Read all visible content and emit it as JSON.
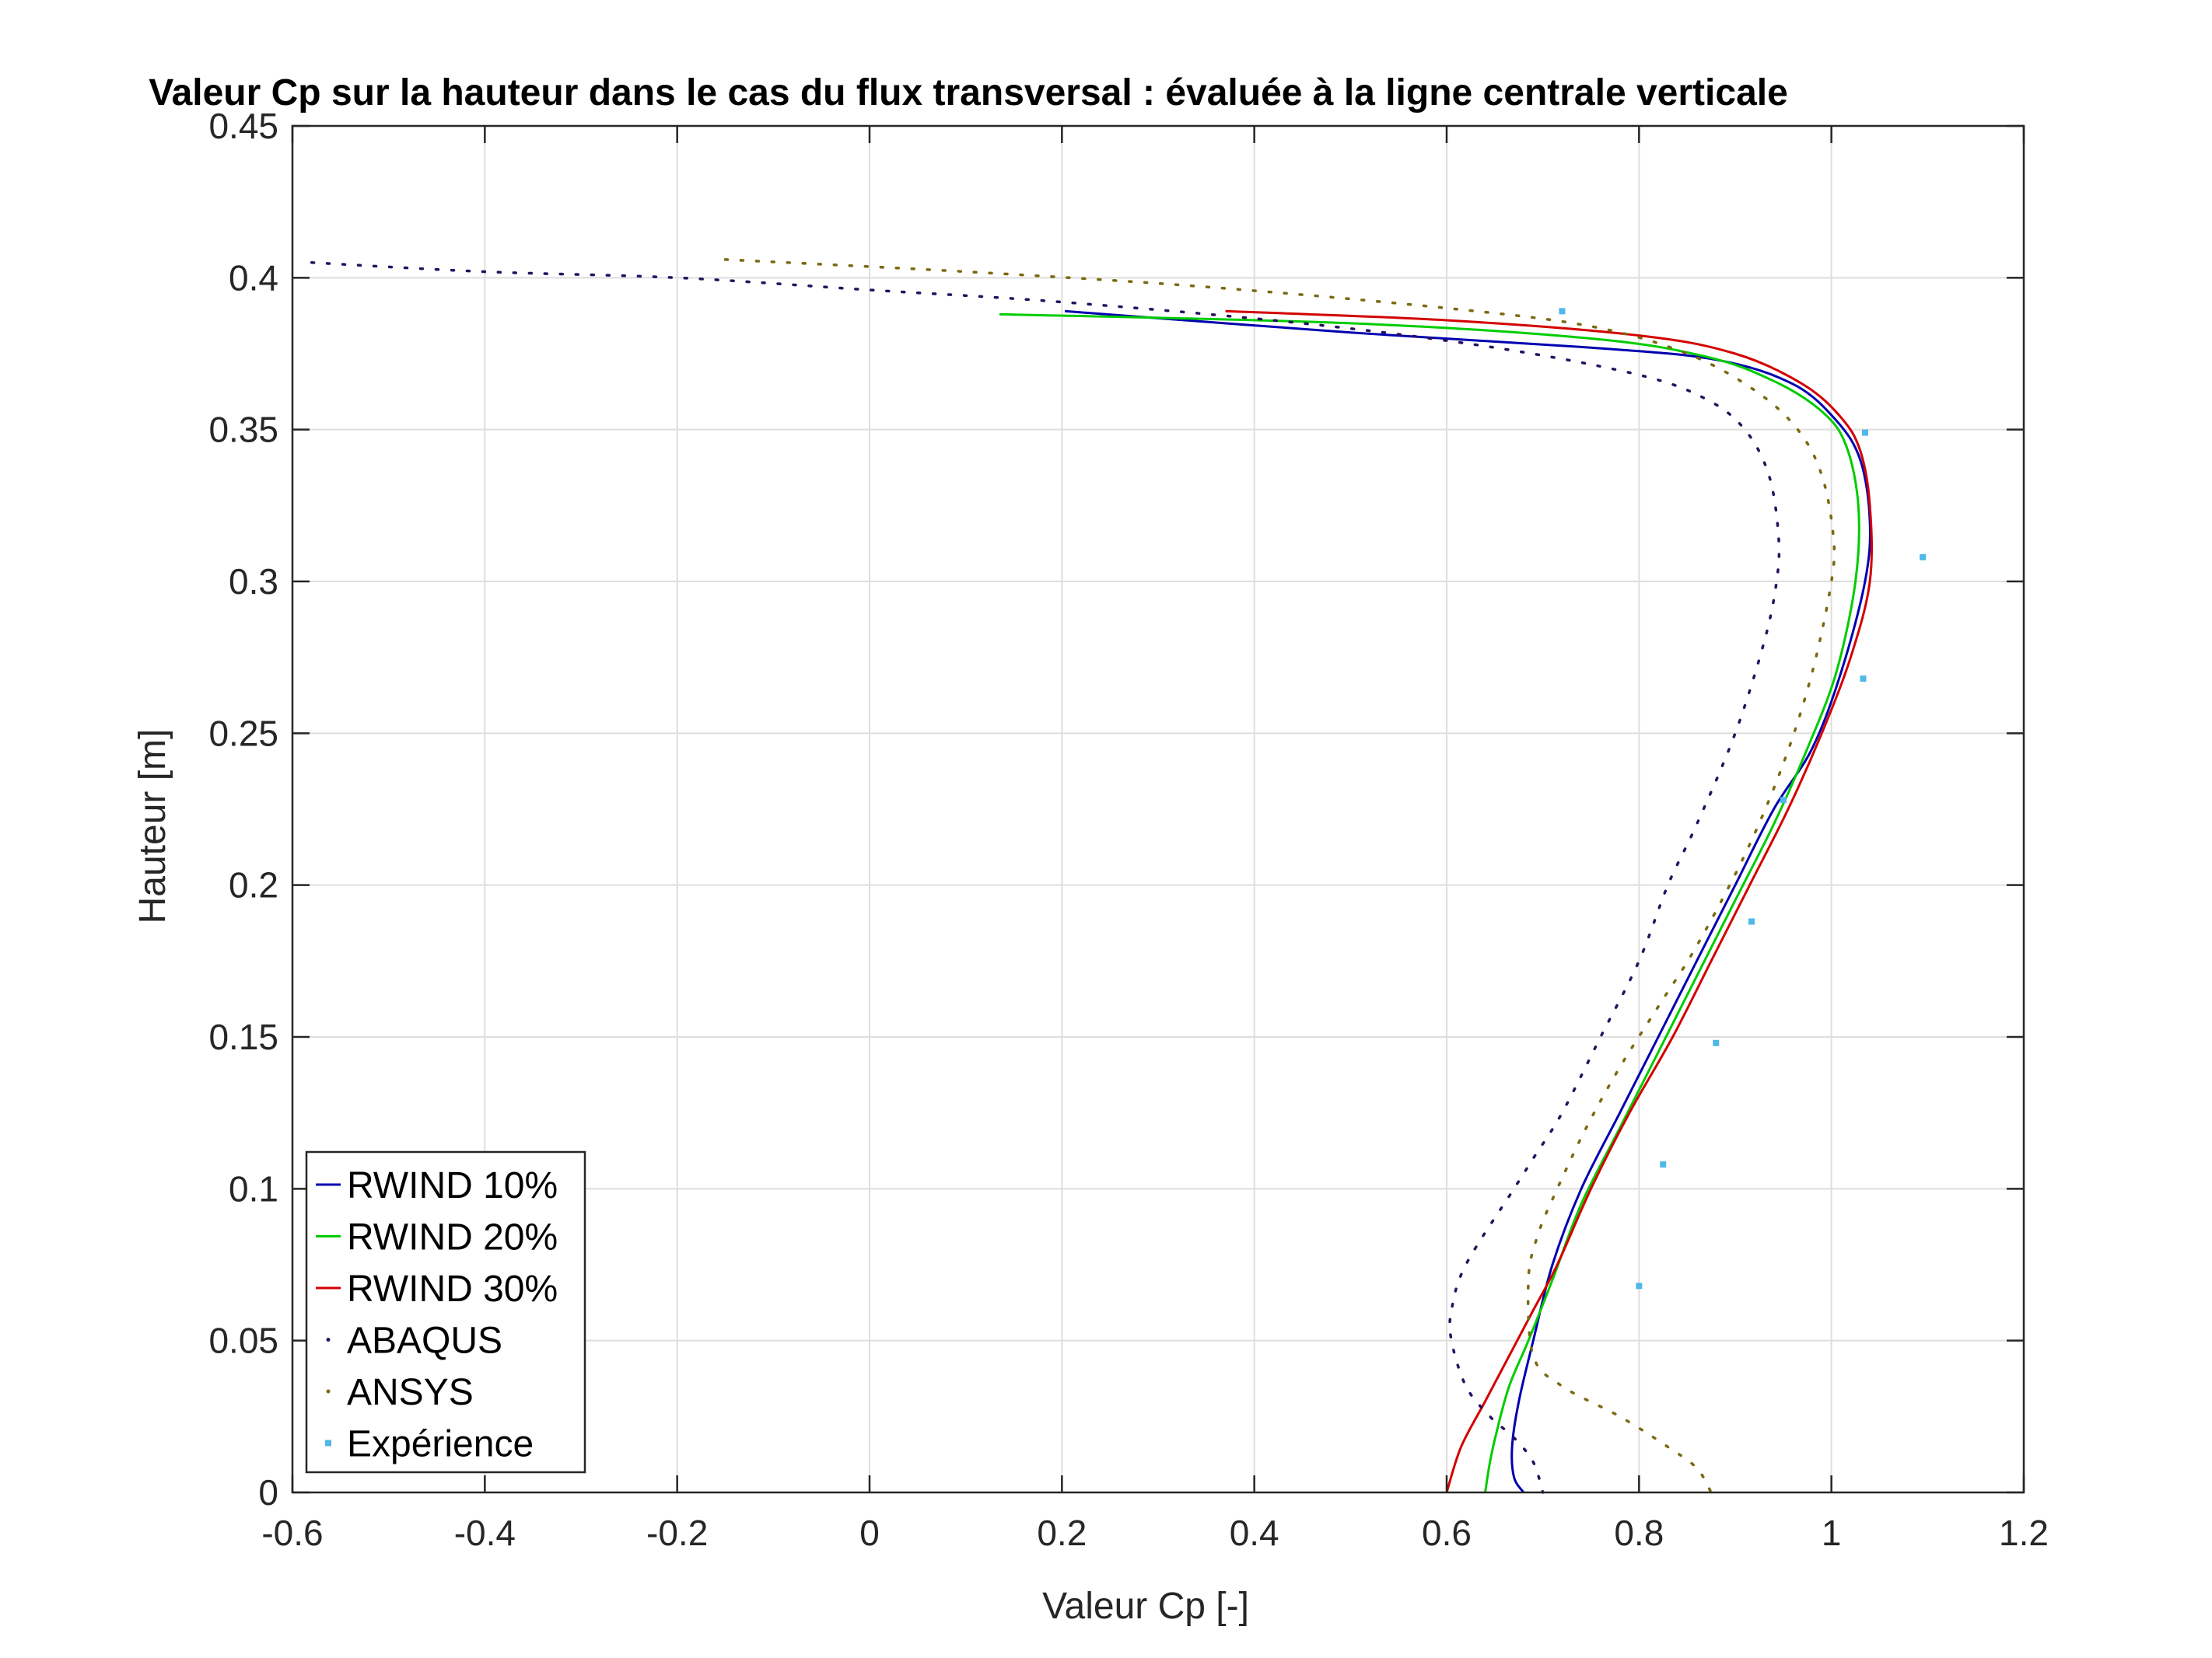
{
  "chart_data": {
    "type": "line",
    "title": "Valeur Cp sur la hauteur dans le cas du flux transversal : évaluée à la ligne centrale verticale",
    "xlabel": "Valeur Cp [-]",
    "ylabel": "Hauteur [m]",
    "xlim": [
      -0.6,
      1.2
    ],
    "ylim": [
      0,
      0.45
    ],
    "xticks": [
      "-0.6",
      "-0.4",
      "-0.2",
      "0",
      "0.2",
      "0.4",
      "0.6",
      "0.8",
      "1",
      "1.2"
    ],
    "xtick_values": [
      -0.6,
      -0.4,
      -0.2,
      0,
      0.2,
      0.4,
      0.6,
      0.8,
      1,
      1.2
    ],
    "yticks": [
      "0",
      "0.05",
      "0.1",
      "0.15",
      "0.2",
      "0.25",
      "0.3",
      "0.35",
      "0.4",
      "0.45"
    ],
    "ytick_values": [
      0,
      0.05,
      0.1,
      0.15,
      0.2,
      0.25,
      0.3,
      0.35,
      0.4,
      0.45
    ],
    "grid": true,
    "legend_position": "bottom-left",
    "series": [
      {
        "name": "RWIND 10%",
        "style": "solid",
        "color": "#0000b0",
        "x": [
          0.203,
          0.5,
          0.75,
          0.88,
          0.96,
          1.005,
          1.03,
          1.04,
          1.035,
          1.01,
          0.98,
          0.94,
          0.9,
          0.86,
          0.82,
          0.78,
          0.74,
          0.71,
          0.69,
          0.675,
          0.668,
          0.67,
          0.68
        ],
        "y": [
          0.389,
          0.382,
          0.377,
          0.373,
          0.365,
          0.353,
          0.34,
          0.32,
          0.3,
          0.27,
          0.245,
          0.225,
          0.2,
          0.175,
          0.15,
          0.125,
          0.1,
          0.075,
          0.05,
          0.03,
          0.015,
          0.005,
          0.0
        ]
      },
      {
        "name": "RWIND 20%",
        "style": "solid",
        "color": "#00cc00",
        "x": [
          0.135,
          0.5,
          0.75,
          0.87,
          0.94,
          0.99,
          1.015,
          1.028,
          1.025,
          1.005,
          0.975,
          0.94,
          0.9,
          0.86,
          0.82,
          0.78,
          0.74,
          0.71,
          0.685,
          0.665,
          0.652,
          0.645,
          0.64
        ],
        "y": [
          0.388,
          0.385,
          0.38,
          0.374,
          0.366,
          0.356,
          0.345,
          0.325,
          0.3,
          0.27,
          0.245,
          0.22,
          0.195,
          0.17,
          0.145,
          0.12,
          0.095,
          0.07,
          0.05,
          0.035,
          0.02,
          0.01,
          0.0
        ]
      },
      {
        "name": "RWIND 30%",
        "style": "solid",
        "color": "#d40000",
        "x": [
          0.37,
          0.6,
          0.8,
          0.9,
          0.97,
          1.01,
          1.03,
          1.04,
          1.04,
          1.02,
          0.99,
          0.955,
          0.915,
          0.875,
          0.835,
          0.79,
          0.75,
          0.715,
          0.69,
          0.665,
          0.64,
          0.615,
          0.6
        ],
        "y": [
          0.389,
          0.386,
          0.381,
          0.375,
          0.365,
          0.354,
          0.343,
          0.325,
          0.3,
          0.275,
          0.25,
          0.225,
          0.2,
          0.175,
          0.15,
          0.125,
          0.1,
          0.075,
          0.06,
          0.045,
          0.03,
          0.015,
          0.0
        ]
      },
      {
        "name": "ABAQUS",
        "style": "dotted",
        "color": "#2a1060",
        "x": [
          -0.58,
          -0.4,
          -0.2,
          0.0,
          0.2,
          0.45,
          0.65,
          0.8,
          0.87,
          0.91,
          0.935,
          0.945,
          0.943,
          0.93,
          0.9,
          0.86,
          0.83,
          0.8,
          0.76,
          0.72,
          0.69,
          0.67,
          0.62,
          0.605,
          0.605,
          0.62,
          0.645,
          0.67,
          0.69,
          0.7
        ],
        "y": [
          0.405,
          0.402,
          0.4,
          0.396,
          0.392,
          0.385,
          0.377,
          0.368,
          0.36,
          0.35,
          0.335,
          0.315,
          0.3,
          0.28,
          0.25,
          0.22,
          0.2,
          0.175,
          0.15,
          0.125,
          0.11,
          0.1,
          0.075,
          0.06,
          0.05,
          0.035,
          0.025,
          0.018,
          0.01,
          0.0
        ]
      },
      {
        "name": "ANSYS",
        "style": "dotted",
        "color": "#7a6a10",
        "x": [
          -0.15,
          0.1,
          0.35,
          0.6,
          0.75,
          0.85,
          0.92,
          0.965,
          0.99,
          1.002,
          1.0,
          0.98,
          0.95,
          0.91,
          0.86,
          0.82,
          0.78,
          0.745,
          0.715,
          0.695,
          0.685,
          0.69,
          0.72,
          0.78,
          0.83,
          0.86,
          0.875
        ],
        "y": [
          0.406,
          0.402,
          0.397,
          0.39,
          0.384,
          0.375,
          0.363,
          0.35,
          0.335,
          0.315,
          0.3,
          0.27,
          0.24,
          0.21,
          0.18,
          0.16,
          0.14,
          0.12,
          0.1,
          0.085,
          0.07,
          0.045,
          0.035,
          0.025,
          0.015,
          0.008,
          0.0
        ]
      },
      {
        "name": "Expérience",
        "style": "markers",
        "color": "#4fb8e8",
        "x": [
          0.72,
          1.035,
          1.095,
          1.033,
          0.95,
          0.917,
          0.88,
          0.825,
          0.8
        ],
        "y": [
          0.389,
          0.349,
          0.308,
          0.268,
          0.228,
          0.188,
          0.148,
          0.108,
          0.068
        ]
      }
    ]
  }
}
